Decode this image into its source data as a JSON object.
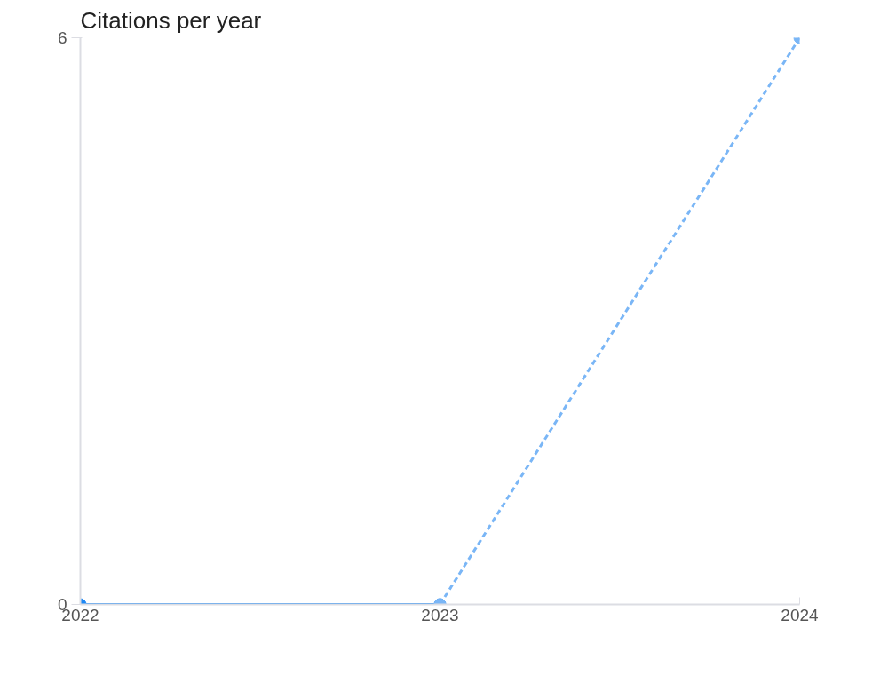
{
  "chart_data": {
    "type": "line",
    "title": "Citations per year",
    "xlim": [
      2022,
      2024
    ],
    "xticks": [
      2022,
      2023,
      2024
    ],
    "ylim": [
      0,
      6
    ],
    "yticks": [
      0,
      6
    ],
    "grid": false,
    "marker": "circle",
    "series": [
      {
        "color": "#1e88f5",
        "x": [
          2022,
          2023
        ],
        "values": [
          0,
          0
        ],
        "line_style": "solid"
      },
      {
        "color": "#7ab6f6",
        "x": [
          2023,
          2024
        ],
        "values": [
          0,
          6
        ],
        "line_style": "dashed"
      }
    ]
  }
}
